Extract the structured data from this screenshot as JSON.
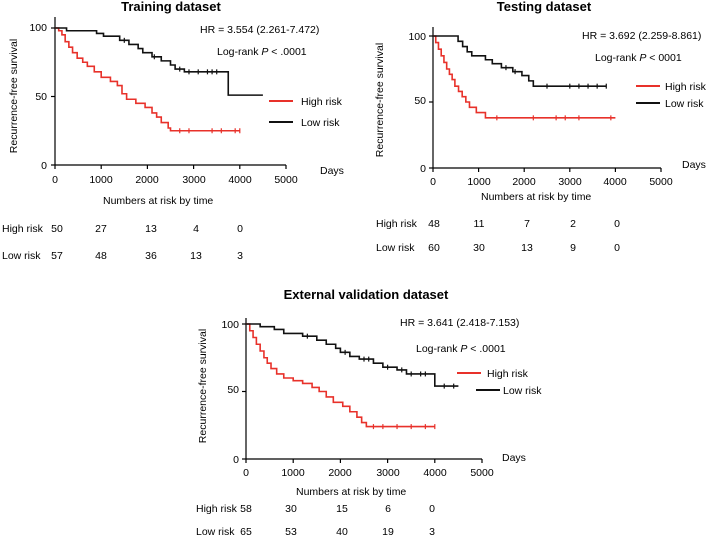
{
  "chart_data": [
    {
      "type": "line",
      "title": "Training dataset",
      "xlabel": "Days",
      "ylabel": "Recurrence-free survival",
      "xlim": [
        0,
        5000
      ],
      "ylim": [
        0,
        100
      ],
      "x_ticks": [
        "0",
        "1000",
        "2000",
        "3000",
        "4000",
        "5000"
      ],
      "y_ticks": [
        "0",
        "50",
        "100"
      ],
      "hr_text": "HR = 3.554 (2.261-7.472)",
      "logrank_prefix": "Log-rank ",
      "logrank_p": "P",
      "logrank_value": " < .0001",
      "legend": [
        {
          "name": "High risk",
          "color": "#e8312a"
        },
        {
          "name": "Low risk",
          "color": "#111111"
        }
      ],
      "series": [
        {
          "name": "High risk",
          "color": "#e8312a",
          "steps": [
            [
              0,
              100
            ],
            [
              80,
              98
            ],
            [
              150,
              95
            ],
            [
              220,
              90
            ],
            [
              300,
              86
            ],
            [
              380,
              82
            ],
            [
              480,
              78
            ],
            [
              600,
              75
            ],
            [
              700,
              72
            ],
            [
              850,
              68
            ],
            [
              1000,
              64
            ],
            [
              1200,
              61
            ],
            [
              1350,
              58
            ],
            [
              1450,
              52
            ],
            [
              1550,
              48
            ],
            [
              1750,
              45
            ],
            [
              1950,
              42
            ],
            [
              2100,
              38
            ],
            [
              2200,
              35
            ],
            [
              2300,
              31
            ],
            [
              2450,
              27
            ],
            [
              2500,
              25
            ],
            [
              4000,
              25
            ]
          ],
          "censors": [
            [
              2700,
              25
            ],
            [
              2900,
              25
            ],
            [
              3400,
              25
            ],
            [
              3600,
              25
            ],
            [
              3900,
              25
            ],
            [
              4000,
              25
            ]
          ]
        },
        {
          "name": "Low risk",
          "color": "#111111",
          "steps": [
            [
              0,
              100
            ],
            [
              250,
              98
            ],
            [
              900,
              96
            ],
            [
              1050,
              94
            ],
            [
              1400,
              91
            ],
            [
              1600,
              88
            ],
            [
              1800,
              85
            ],
            [
              1900,
              82
            ],
            [
              2100,
              79
            ],
            [
              2300,
              76
            ],
            [
              2500,
              73
            ],
            [
              2600,
              70
            ],
            [
              2800,
              68
            ],
            [
              3700,
              68
            ],
            [
              3750,
              51
            ],
            [
              4500,
              51
            ]
          ],
          "censors": [
            [
              1500,
              91
            ],
            [
              2150,
              79
            ],
            [
              2700,
              70
            ],
            [
              2900,
              68
            ],
            [
              3100,
              68
            ],
            [
              3300,
              68
            ],
            [
              3400,
              68
            ],
            [
              3500,
              68
            ]
          ]
        }
      ],
      "risk_table": {
        "header": "Numbers at risk by time",
        "rows": [
          {
            "label": "High risk",
            "values": [
              "50",
              "27",
              "13",
              "4",
              "0"
            ]
          },
          {
            "label": "Low risk",
            "values": [
              "57",
              "48",
              "36",
              "13",
              "3"
            ]
          }
        ]
      }
    },
    {
      "type": "line",
      "title": "Testing dataset",
      "xlabel": "Days",
      "ylabel": "Recurrence-free survival",
      "xlim": [
        0,
        5000
      ],
      "ylim": [
        0,
        100
      ],
      "x_ticks": [
        "0",
        "1000",
        "2000",
        "3000",
        "4000",
        "5000"
      ],
      "y_ticks": [
        "0",
        "50",
        "100"
      ],
      "hr_text": "HR = 3.692 (2.259-8.861)",
      "logrank_prefix": "Log-rank ",
      "logrank_p": "P",
      "logrank_value": " < 0001",
      "legend": [
        {
          "name": "High risk",
          "color": "#e8312a"
        },
        {
          "name": "Low risk",
          "color": "#111111"
        }
      ],
      "series": [
        {
          "name": "High risk",
          "color": "#e8312a",
          "steps": [
            [
              0,
              100
            ],
            [
              60,
              95
            ],
            [
              120,
              90
            ],
            [
              180,
              85
            ],
            [
              240,
              80
            ],
            [
              300,
              75
            ],
            [
              360,
              71
            ],
            [
              420,
              67
            ],
            [
              480,
              62
            ],
            [
              560,
              58
            ],
            [
              640,
              54
            ],
            [
              720,
              50
            ],
            [
              800,
              46
            ],
            [
              950,
              42
            ],
            [
              1150,
              38
            ],
            [
              4000,
              38
            ]
          ],
          "censors": [
            [
              1400,
              38
            ],
            [
              2200,
              38
            ],
            [
              2700,
              38
            ],
            [
              2900,
              38
            ],
            [
              3200,
              38
            ],
            [
              3900,
              38
            ]
          ]
        },
        {
          "name": "Low risk",
          "color": "#111111",
          "steps": [
            [
              0,
              100
            ],
            [
              550,
              96
            ],
            [
              650,
              92
            ],
            [
              750,
              88
            ],
            [
              850,
              85
            ],
            [
              1150,
              82
            ],
            [
              1300,
              79
            ],
            [
              1500,
              76
            ],
            [
              1750,
              73
            ],
            [
              1950,
              70
            ],
            [
              2100,
              66
            ],
            [
              2200,
              62
            ],
            [
              3800,
              62
            ]
          ],
          "censors": [
            [
              1600,
              76
            ],
            [
              1800,
              73
            ],
            [
              2500,
              62
            ],
            [
              3000,
              62
            ],
            [
              3200,
              62
            ],
            [
              3400,
              62
            ],
            [
              3600,
              62
            ],
            [
              3800,
              62
            ]
          ]
        }
      ],
      "risk_table": {
        "header": "Numbers at risk by time",
        "rows": [
          {
            "label": "High risk",
            "values": [
              "48",
              "11",
              "7",
              "2",
              "0"
            ]
          },
          {
            "label": "Low risk",
            "values": [
              "60",
              "30",
              "13",
              "9",
              "0"
            ]
          }
        ]
      }
    },
    {
      "type": "line",
      "title": "External validation dataset",
      "xlabel": "Days",
      "ylabel": "Recurrence-free survival",
      "xlim": [
        0,
        5000
      ],
      "ylim": [
        0,
        100
      ],
      "x_ticks": [
        "0",
        "1000",
        "2000",
        "3000",
        "4000",
        "5000"
      ],
      "y_ticks": [
        "0",
        "50",
        "100"
      ],
      "hr_text": "HR = 3.641 (2.418-7.153)",
      "logrank_prefix": "Log-rank ",
      "logrank_p": "P",
      "logrank_value": " < .0001",
      "legend": [
        {
          "name": "High risk",
          "color": "#e8312a"
        },
        {
          "name": "Low risk",
          "color": "#111111"
        }
      ],
      "series": [
        {
          "name": "High risk",
          "color": "#e8312a",
          "steps": [
            [
              0,
              100
            ],
            [
              80,
              95
            ],
            [
              150,
              90
            ],
            [
              220,
              85
            ],
            [
              300,
              80
            ],
            [
              380,
              75
            ],
            [
              450,
              71
            ],
            [
              530,
              67
            ],
            [
              650,
              63
            ],
            [
              800,
              60
            ],
            [
              1000,
              58
            ],
            [
              1200,
              56
            ],
            [
              1400,
              53
            ],
            [
              1550,
              50
            ],
            [
              1700,
              46
            ],
            [
              1850,
              42
            ],
            [
              2050,
              39
            ],
            [
              2200,
              35
            ],
            [
              2350,
              31
            ],
            [
              2450,
              27
            ],
            [
              2550,
              24
            ],
            [
              4000,
              24
            ]
          ],
          "censors": [
            [
              2700,
              24
            ],
            [
              2900,
              24
            ],
            [
              3200,
              24
            ],
            [
              3500,
              24
            ],
            [
              3800,
              24
            ],
            [
              4000,
              24
            ]
          ]
        },
        {
          "name": "Low risk",
          "color": "#111111",
          "steps": [
            [
              0,
              100
            ],
            [
              300,
              98
            ],
            [
              600,
              96
            ],
            [
              800,
              93
            ],
            [
              1200,
              91
            ],
            [
              1500,
              88
            ],
            [
              1700,
              85
            ],
            [
              1900,
              82
            ],
            [
              2000,
              79
            ],
            [
              2200,
              76
            ],
            [
              2400,
              74
            ],
            [
              2700,
              71
            ],
            [
              2900,
              68
            ],
            [
              3200,
              66
            ],
            [
              3400,
              63
            ],
            [
              3900,
              63
            ],
            [
              4000,
              54
            ],
            [
              4500,
              54
            ]
          ],
          "censors": [
            [
              1300,
              91
            ],
            [
              2100,
              79
            ],
            [
              2500,
              74
            ],
            [
              2600,
              74
            ],
            [
              3000,
              68
            ],
            [
              3300,
              66
            ],
            [
              3500,
              63
            ],
            [
              3700,
              63
            ],
            [
              3800,
              63
            ],
            [
              4200,
              54
            ],
            [
              4400,
              54
            ]
          ]
        }
      ],
      "risk_table": {
        "header": "Numbers at risk by time",
        "rows": [
          {
            "label": "High risk",
            "values": [
              "58",
              "30",
              "15",
              "6",
              "0"
            ]
          },
          {
            "label": "Low risk",
            "values": [
              "65",
              "53",
              "40",
              "19",
              "3"
            ]
          }
        ]
      }
    }
  ]
}
